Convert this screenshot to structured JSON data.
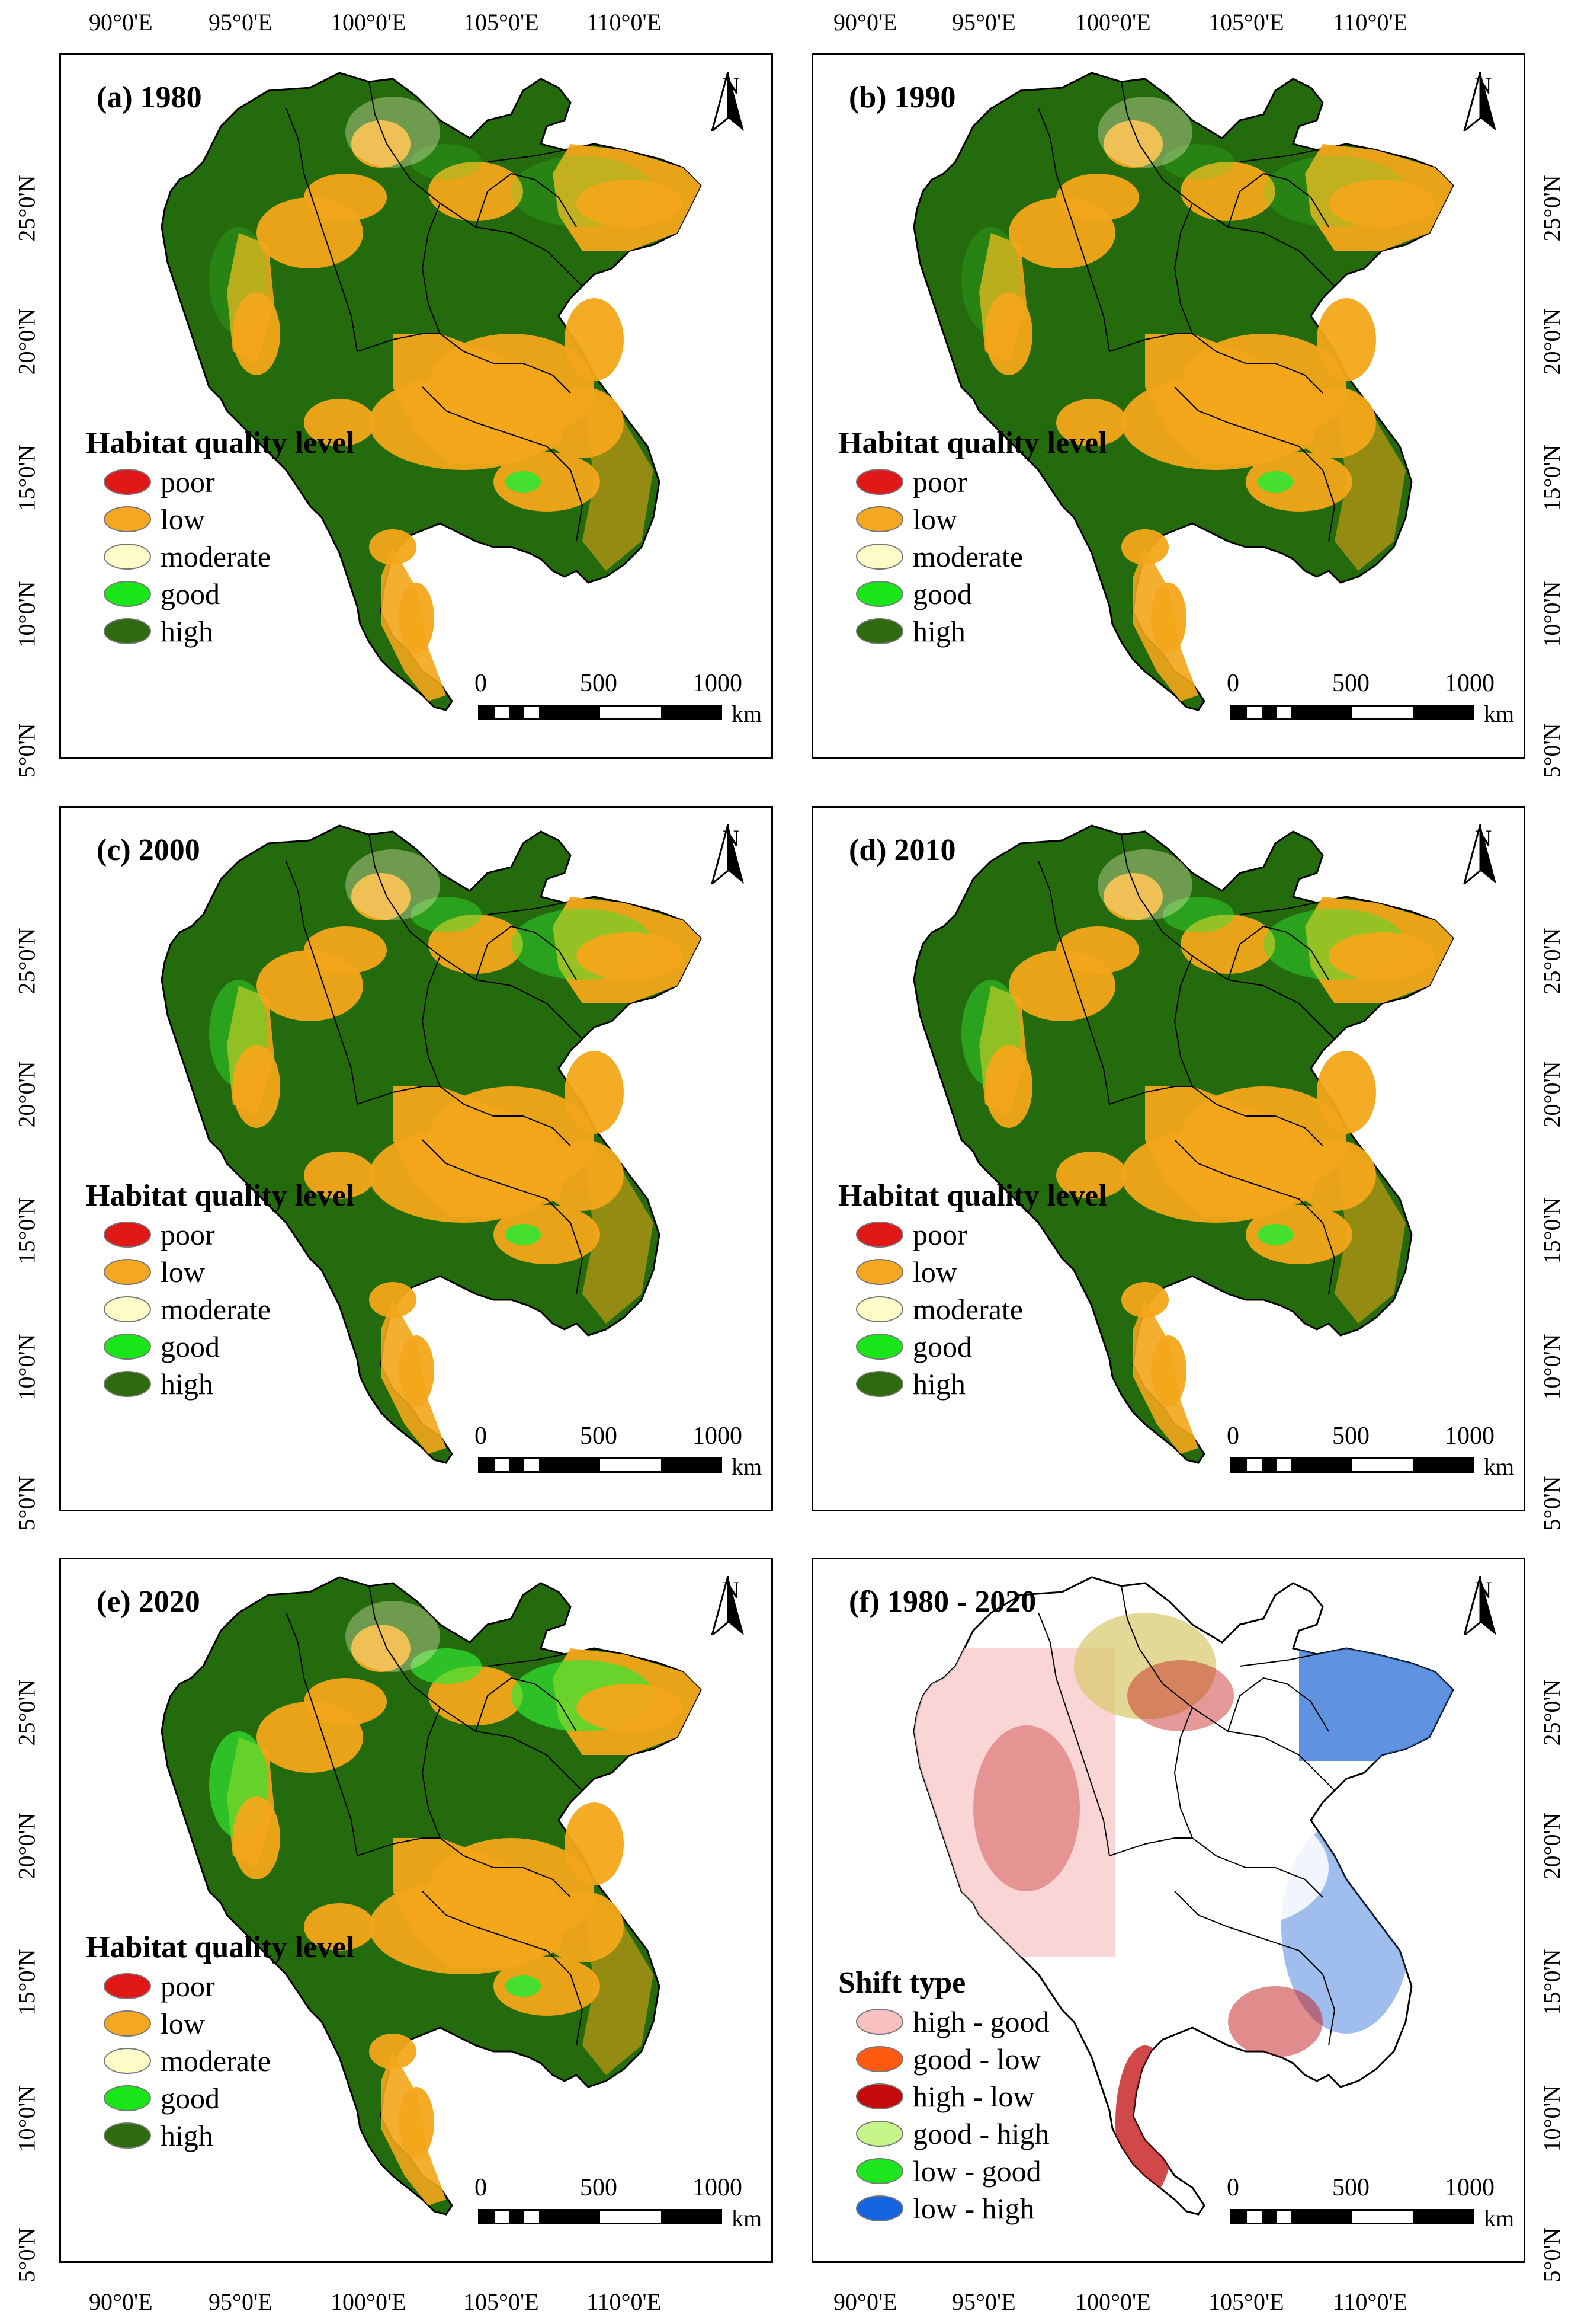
{
  "axes": {
    "top_lon": [
      "90°0'E",
      "95°0'E",
      "100°0'E",
      "105°0'E",
      "110°0'E"
    ],
    "bottom_lon": [
      "90°0'E",
      "95°0'E",
      "100°0'E",
      "105°0'E",
      "110°0'E"
    ],
    "lat": [
      "25°0'N",
      "20°0'N",
      "15°0'N",
      "10°0'N",
      "5°0'N"
    ]
  },
  "north_arrow": {
    "label": "N",
    "icon": "north-arrow-icon"
  },
  "scale_bar": {
    "labels": [
      "0",
      "500",
      "1000"
    ],
    "unit": "km"
  },
  "panels": [
    {
      "title": "(a) 1980",
      "legend_title": "Habitat quality level",
      "legend_key": "habitat",
      "dominant": "mixed_a"
    },
    {
      "title": "(b) 1990",
      "legend_title": "Habitat quality level",
      "legend_key": "habitat",
      "dominant": "mixed_a"
    },
    {
      "title": "(c) 2000",
      "legend_title": "Habitat quality level",
      "legend_key": "habitat",
      "dominant": "mixed_c"
    },
    {
      "title": "(d) 2010",
      "legend_title": "Habitat quality level",
      "legend_key": "habitat",
      "dominant": "mixed_c"
    },
    {
      "title": "(e) 2020",
      "legend_title": "Habitat quality level",
      "legend_key": "habitat",
      "dominant": "mixed_e"
    },
    {
      "title": "(f) 1980 - 2020",
      "legend_title": "Shift type",
      "legend_key": "shift",
      "dominant": "shift"
    }
  ],
  "legends": {
    "habitat": [
      {
        "label": "poor",
        "color": "#e01818"
      },
      {
        "label": "low",
        "color": "#f5a623"
      },
      {
        "label": "moderate",
        "color": "#fdfbc8"
      },
      {
        "label": "good",
        "color": "#19e619"
      },
      {
        "label": "high",
        "color": "#2e6b0f"
      }
    ],
    "shift": [
      {
        "label": "high - good",
        "color": "#f9c0c0"
      },
      {
        "label": "good - low",
        "color": "#ff5a12"
      },
      {
        "label": "high - low",
        "color": "#c40b0b"
      },
      {
        "label": "good - high",
        "color": "#c8f58a"
      },
      {
        "label": "low - good",
        "color": "#1ee61e"
      },
      {
        "label": "low - high",
        "color": "#1565e0"
      }
    ]
  },
  "colors": {
    "high": "#236b0d",
    "low": "#f3a61a",
    "good": "#33e633",
    "moderate": "#fdf6c8",
    "shift_pink": "#f7c7c7",
    "shift_red": "#c41a1a",
    "shift_blue": "#2a6fd6",
    "shift_yellow": "#d9c86a",
    "border": "#000000"
  }
}
